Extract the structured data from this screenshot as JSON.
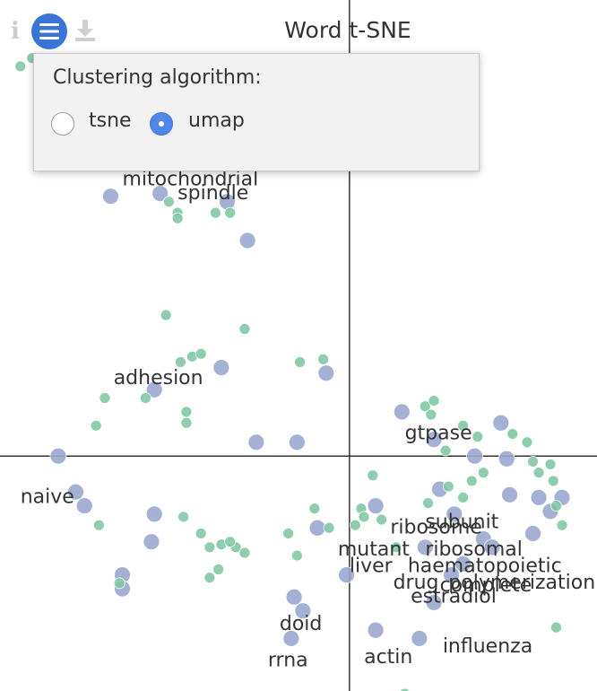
{
  "chart_data": {
    "type": "scatter",
    "title": "Word t-SNE",
    "xlim": [
      -12,
      8.5
    ],
    "ylim": [
      -8.5,
      16.5
    ],
    "grid": false,
    "legend": "none",
    "series": [
      {
        "name": "",
        "color": "#9aa8cf",
        "points": [
          {
            "x": -10,
            "y": 0
          },
          {
            "x": -9.4,
            "y": -1.3
          },
          {
            "x": -9.1,
            "y": -1.8
          },
          {
            "x": -6.7,
            "y": -2.1
          },
          {
            "x": -6.8,
            "y": -3.1
          },
          {
            "x": -7.8,
            "y": -4.3
          },
          {
            "x": -7.8,
            "y": -4.8
          },
          {
            "x": -4.4,
            "y": 3.2
          },
          {
            "x": -6.7,
            "y": 2.4
          },
          {
            "x": -8.2,
            "y": 9.4
          },
          {
            "x": -6.5,
            "y": 9.5
          },
          {
            "x": -4.2,
            "y": 9.2
          },
          {
            "x": -3.5,
            "y": 7.8
          },
          {
            "x": -3.2,
            "y": 0.5
          },
          {
            "x": -1.8,
            "y": 0.5
          },
          {
            "x": -0.8,
            "y": 3
          },
          {
            "x": -1.1,
            "y": -2.6
          },
          {
            "x": -1.9,
            "y": -5.1
          },
          {
            "x": -1.6,
            "y": -5.6
          },
          {
            "x": -2,
            "y": -6.6
          },
          {
            "x": -0.1,
            "y": -4.3
          },
          {
            "x": 0.9,
            "y": -1.8
          },
          {
            "x": 1.8,
            "y": 1.6
          },
          {
            "x": 2.9,
            "y": 0.6
          },
          {
            "x": 3.1,
            "y": -1.2
          },
          {
            "x": 3.6,
            "y": -2.1
          },
          {
            "x": 5.2,
            "y": 1.2
          },
          {
            "x": 4.3,
            "y": 0
          },
          {
            "x": 5.4,
            "y": -0.1
          },
          {
            "x": 5.5,
            "y": -1.4
          },
          {
            "x": 6.5,
            "y": -1.5
          },
          {
            "x": 6.9,
            "y": -2
          },
          {
            "x": 4.6,
            "y": -3
          },
          {
            "x": 3.9,
            "y": -3.9
          },
          {
            "x": 3.5,
            "y": -4.3
          },
          {
            "x": 4.9,
            "y": -3.3
          },
          {
            "x": 6.3,
            "y": -2.8
          },
          {
            "x": 2.6,
            "y": -3.3
          },
          {
            "x": 0.9,
            "y": -6.3
          },
          {
            "x": 2.9,
            "y": -5.3
          },
          {
            "x": 2.4,
            "y": -6.6
          },
          {
            "x": 7.3,
            "y": -1.5
          }
        ]
      },
      {
        "name": "",
        "color": "#82c9a5",
        "points": [
          {
            "x": -11.3,
            "y": 14.1
          },
          {
            "x": -10.9,
            "y": 14.4
          },
          {
            "x": -6.2,
            "y": 9.2
          },
          {
            "x": -5.9,
            "y": 8.8
          },
          {
            "x": -5.9,
            "y": 8.6
          },
          {
            "x": -4.6,
            "y": 8.8
          },
          {
            "x": -4.1,
            "y": 8.8
          },
          {
            "x": -6.3,
            "y": 5.1
          },
          {
            "x": -3.6,
            "y": 4.6
          },
          {
            "x": -5.8,
            "y": 3.4
          },
          {
            "x": -5.4,
            "y": 3.6
          },
          {
            "x": -5.1,
            "y": 3.7
          },
          {
            "x": -8.4,
            "y": 2.1
          },
          {
            "x": -8.7,
            "y": 1.1
          },
          {
            "x": -5.6,
            "y": 1.6
          },
          {
            "x": -5.6,
            "y": 1.2
          },
          {
            "x": -7,
            "y": 2.1
          },
          {
            "x": -1.7,
            "y": 3.4
          },
          {
            "x": -0.9,
            "y": 3.5
          },
          {
            "x": 2.6,
            "y": 1.8
          },
          {
            "x": 2.9,
            "y": 2
          },
          {
            "x": 2.8,
            "y": 1.5
          },
          {
            "x": 3.9,
            "y": 1.1
          },
          {
            "x": 3.3,
            "y": 0.2
          },
          {
            "x": 4.4,
            "y": 0.7
          },
          {
            "x": 5.6,
            "y": 0.8
          },
          {
            "x": 6.1,
            "y": 0.5
          },
          {
            "x": 6.3,
            "y": -0.2
          },
          {
            "x": 6.5,
            "y": -0.6
          },
          {
            "x": 6.9,
            "y": -0.3
          },
          {
            "x": 7,
            "y": -0.9
          },
          {
            "x": 7.1,
            "y": -1.8
          },
          {
            "x": 7.3,
            "y": -2.5
          },
          {
            "x": 4.6,
            "y": -0.6
          },
          {
            "x": 4.2,
            "y": -0.9
          },
          {
            "x": 3.4,
            "y": -1.1
          },
          {
            "x": 3.9,
            "y": -1.5
          },
          {
            "x": 2.7,
            "y": -1.7
          },
          {
            "x": 0.8,
            "y": -0.7
          },
          {
            "x": 0.4,
            "y": -1.9
          },
          {
            "x": 0.5,
            "y": -2.2
          },
          {
            "x": 1.1,
            "y": -2.3
          },
          {
            "x": -0.7,
            "y": -2.6
          },
          {
            "x": -1.2,
            "y": -1.9
          },
          {
            "x": -2.1,
            "y": -2.8
          },
          {
            "x": -1.8,
            "y": -3.6
          },
          {
            "x": -3.9,
            "y": -3.3
          },
          {
            "x": -3.6,
            "y": -3.5
          },
          {
            "x": -5.7,
            "y": -2.2
          },
          {
            "x": -5.1,
            "y": -2.8
          },
          {
            "x": -4.8,
            "y": -3.3
          },
          {
            "x": -4.4,
            "y": -3.2
          },
          {
            "x": -4.1,
            "y": -3.1
          },
          {
            "x": -4.5,
            "y": -4.1
          },
          {
            "x": -4.8,
            "y": -4.4
          },
          {
            "x": -8.6,
            "y": -2.5
          },
          {
            "x": -7.9,
            "y": -4.6
          },
          {
            "x": 1.6,
            "y": -3.3
          },
          {
            "x": 0.2,
            "y": -2.5
          },
          {
            "x": 7.1,
            "y": -6.2
          },
          {
            "x": 1.9,
            "y": -8.6
          },
          {
            "x": 2.1,
            "y": -8.8
          }
        ]
      }
    ],
    "labels": [
      {
        "text": "mitochondrial",
        "x": -7.8,
        "y": 9.8
      },
      {
        "text": "spindle",
        "x": -5.9,
        "y": 9.3
      },
      {
        "text": "adhesion",
        "x": -8.1,
        "y": 2.6
      },
      {
        "text": "naive",
        "x": -11.3,
        "y": -1.7
      },
      {
        "text": "gtpase",
        "x": 1.9,
        "y": 0.6
      },
      {
        "text": "subunit",
        "x": 2.6,
        "y": -2.6
      },
      {
        "text": "ribosome",
        "x": 1.4,
        "y": -2.8
      },
      {
        "text": "ribosomal",
        "x": 2.6,
        "y": -3.6
      },
      {
        "text": "mutant",
        "x": -0.4,
        "y": -3.6
      },
      {
        "text": "haematopoietic",
        "x": 2,
        "y": -4.2
      },
      {
        "text": "liver",
        "x": 0,
        "y": -4.2
      },
      {
        "text": "drug",
        "x": 1.5,
        "y": -4.8
      },
      {
        "text": "polymerization",
        "x": 3.4,
        "y": -4.8
      },
      {
        "text": "complete",
        "x": 3.1,
        "y": -4.9
      },
      {
        "text": "estradiol",
        "x": 2.1,
        "y": -5.3
      },
      {
        "text": "doid",
        "x": -2.4,
        "y": -6.3
      },
      {
        "text": "rrna",
        "x": -2.8,
        "y": -7.6
      },
      {
        "text": "actin",
        "x": 0.5,
        "y": -7.5
      },
      {
        "text": "influenza",
        "x": 3.2,
        "y": -7.1
      }
    ]
  },
  "toolbar": {
    "info_icon": "info-icon",
    "info_glyph": "i",
    "menu_icon": "hamburger-menu-icon",
    "download_icon": "download-icon",
    "accent_color": "#3a74d8"
  },
  "popup": {
    "title": "Clustering algorithm:",
    "options": [
      {
        "label": "tsne",
        "selected": false
      },
      {
        "label": "umap",
        "selected": true
      }
    ]
  }
}
